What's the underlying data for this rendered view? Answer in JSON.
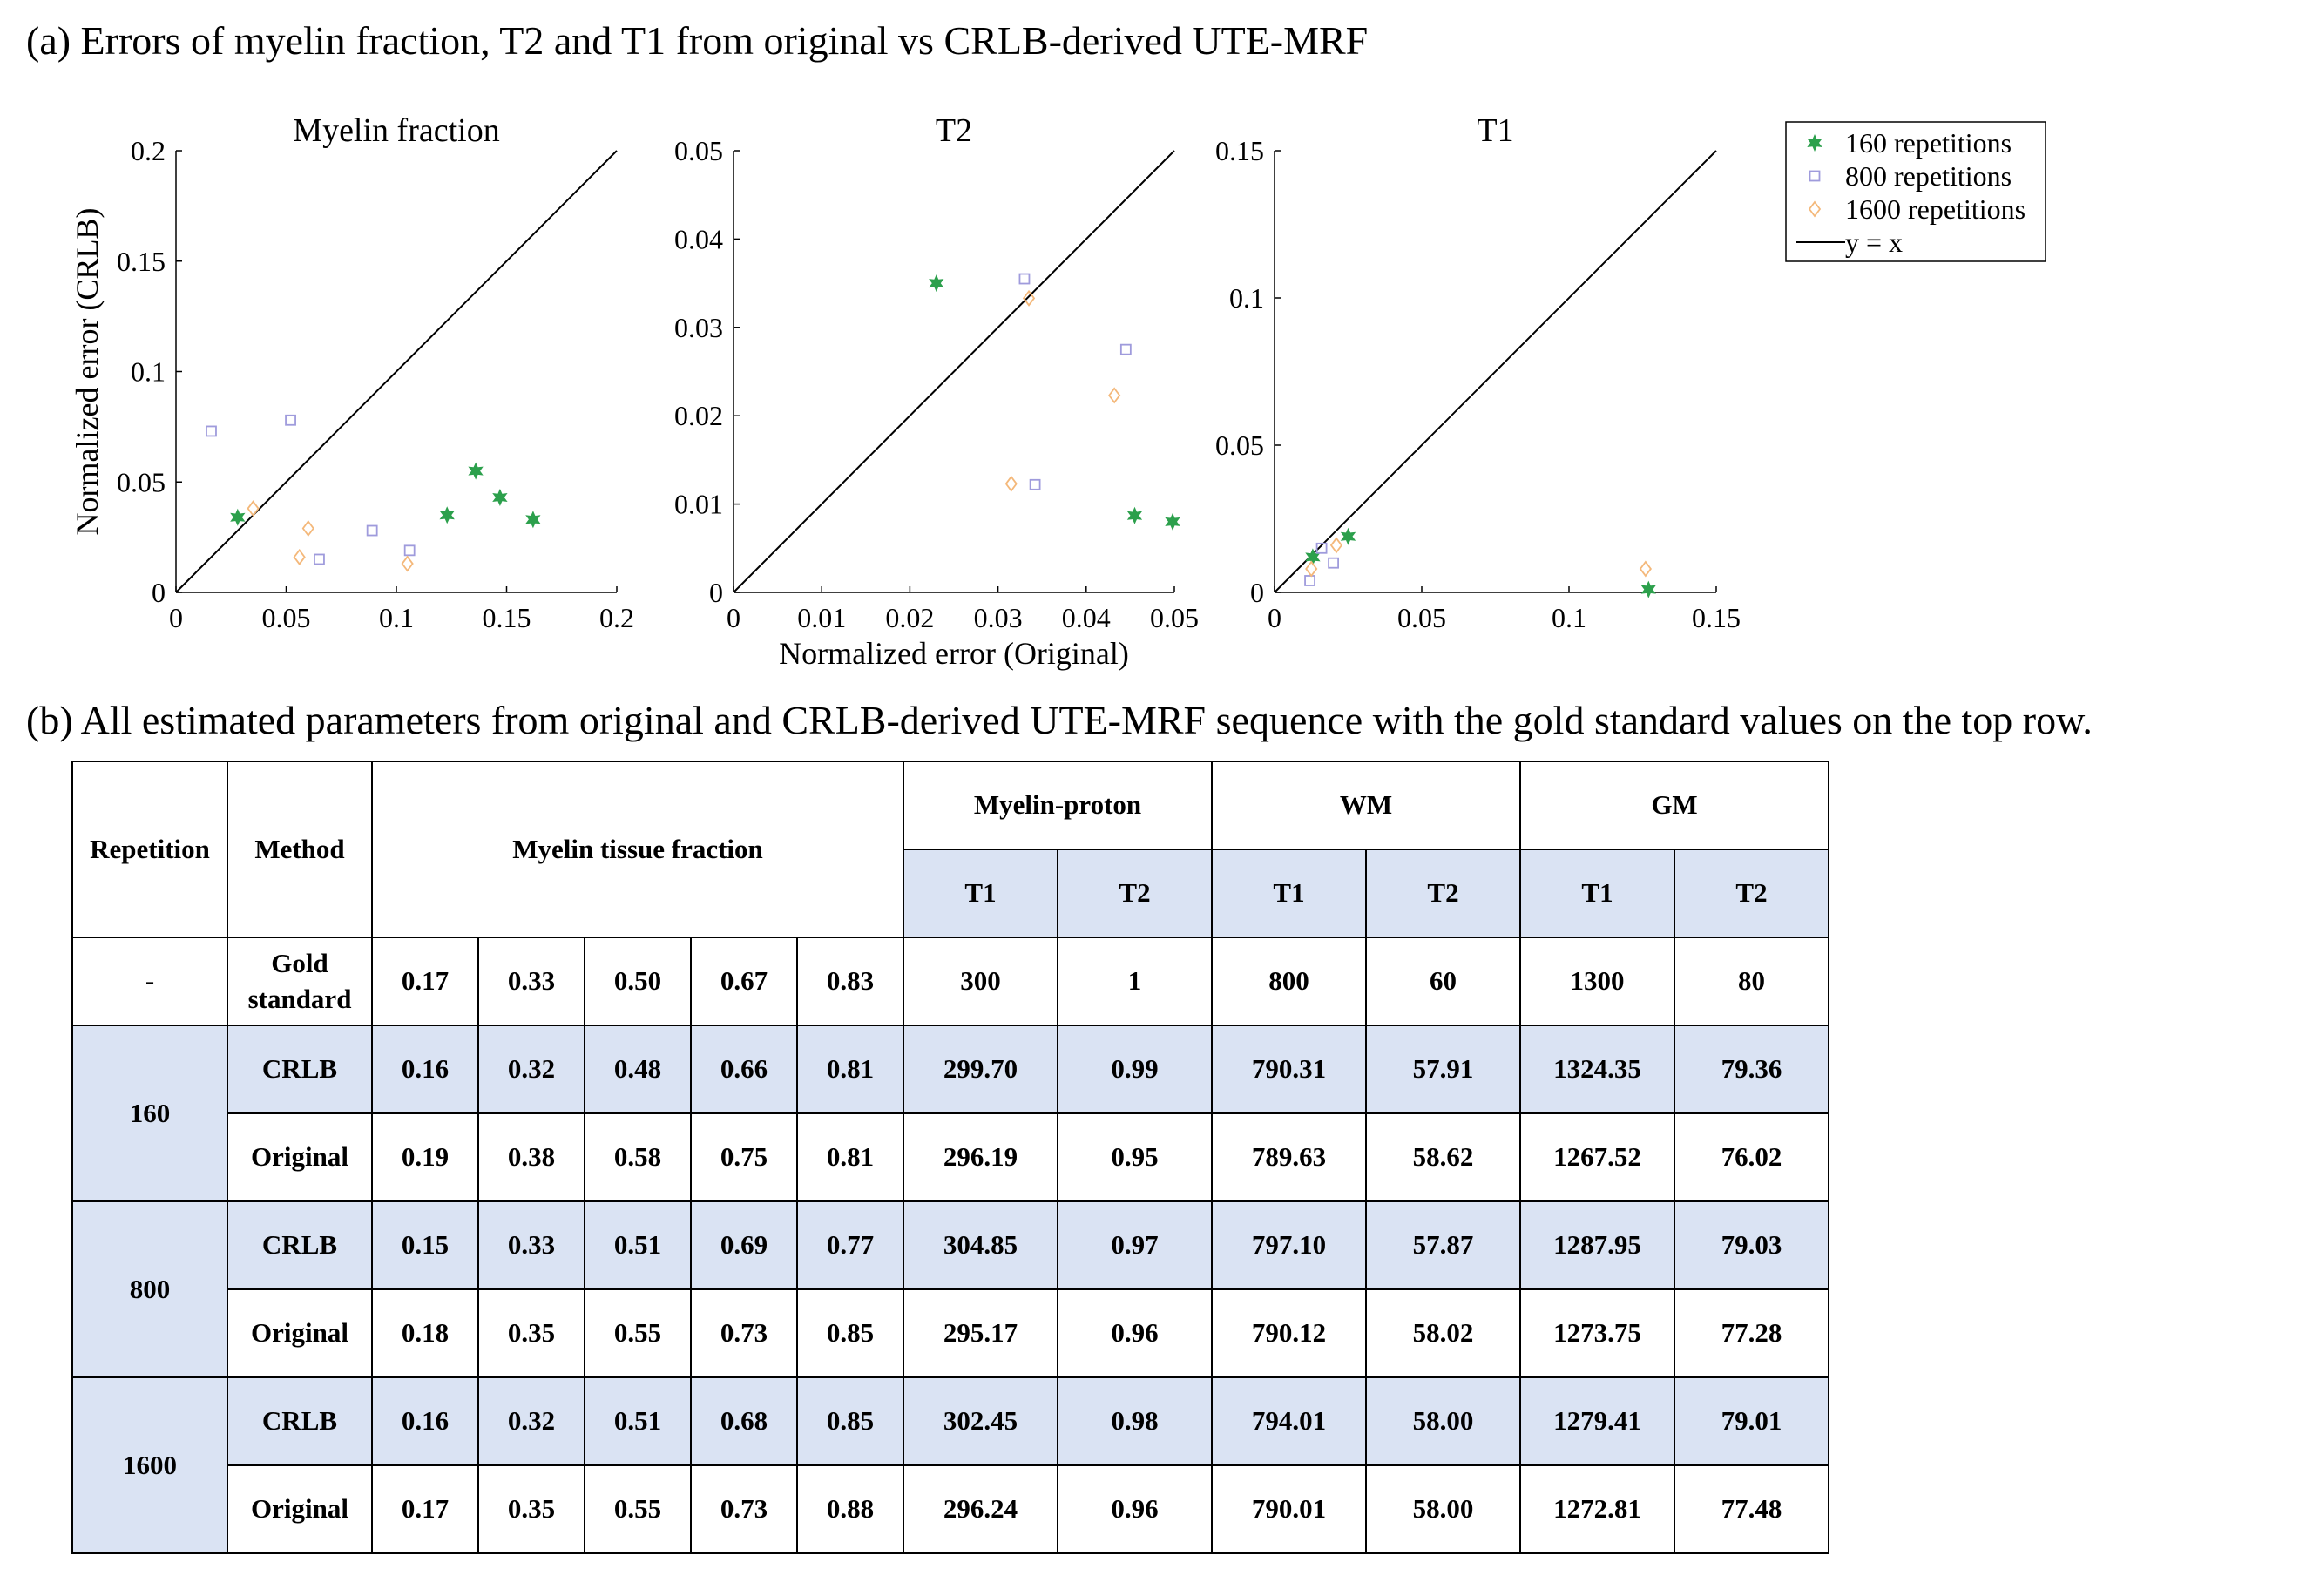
{
  "caption_a": "(a) Errors of  myelin fraction, T2 and T1 from original vs CRLB-derived UTE-MRF",
  "caption_b": "(b) All estimated parameters from original and CRLB-derived UTE-MRF sequence with the gold standard values on the top row.",
  "colors": {
    "rep160": "#2ca04c",
    "rep800": "#9f9bdc",
    "rep1600": "#f4b87a",
    "table_shade": "#dae3f3"
  },
  "legend": [
    "160 repetitions",
    "800 repetitions",
    "1600 repetitions",
    "y = x"
  ],
  "chart_data": [
    {
      "type": "scatter",
      "title": "Myelin fraction",
      "xlabel": "",
      "ylabel": "Normalized error (CRLB)",
      "xlim": [
        0,
        0.2
      ],
      "ylim": [
        0,
        0.2
      ],
      "xticks": [
        "0",
        "0.05",
        "0.1",
        "0.15",
        "0.2"
      ],
      "yticks": [
        "0",
        "0.05",
        "0.1",
        "0.15",
        "0.2"
      ],
      "reference_line": "y = x",
      "series": [
        {
          "name": "160 repetitions",
          "marker": "star",
          "points": [
            [
              0.028,
              0.034
            ],
            [
              0.123,
              0.035
            ],
            [
              0.136,
              0.055
            ],
            [
              0.147,
              0.043
            ],
            [
              0.162,
              0.033
            ]
          ]
        },
        {
          "name": "800 repetitions",
          "marker": "square",
          "points": [
            [
              0.016,
              0.073
            ],
            [
              0.052,
              0.078
            ],
            [
              0.065,
              0.015
            ],
            [
              0.089,
              0.028
            ],
            [
              0.106,
              0.019
            ]
          ]
        },
        {
          "name": "1600 repetitions",
          "marker": "diamond",
          "points": [
            [
              0.035,
              0.038
            ],
            [
              0.056,
              0.016
            ],
            [
              0.06,
              0.029
            ],
            [
              0.105,
              0.013
            ]
          ]
        }
      ]
    },
    {
      "type": "scatter",
      "title": "T2",
      "xlabel": "Normalized error (Original)",
      "ylabel": "",
      "xlim": [
        0,
        0.05
      ],
      "ylim": [
        0,
        0.05
      ],
      "xticks": [
        "0",
        "0.01",
        "0.02",
        "0.03",
        "0.04",
        "0.05"
      ],
      "yticks": [
        "0",
        "0.01",
        "0.02",
        "0.03",
        "0.04",
        "0.05"
      ],
      "reference_line": "y = x",
      "series": [
        {
          "name": "160 repetitions",
          "marker": "star",
          "points": [
            [
              0.023,
              0.035
            ],
            [
              0.0455,
              0.0087
            ],
            [
              0.0498,
              0.008
            ]
          ]
        },
        {
          "name": "800 repetitions",
          "marker": "square",
          "points": [
            [
              0.033,
              0.0355
            ],
            [
              0.0445,
              0.0275
            ],
            [
              0.0342,
              0.0122
            ]
          ]
        },
        {
          "name": "1600 repetitions",
          "marker": "diamond",
          "points": [
            [
              0.0335,
              0.0333
            ],
            [
              0.0432,
              0.0223
            ],
            [
              0.0315,
              0.0123
            ]
          ]
        }
      ]
    },
    {
      "type": "scatter",
      "title": "T1",
      "xlabel": "",
      "ylabel": "",
      "xlim": [
        0,
        0.15
      ],
      "ylim": [
        0,
        0.15
      ],
      "xticks": [
        "0",
        "0.05",
        "0.1",
        "0.15"
      ],
      "yticks": [
        "0",
        "0.05",
        "0.1",
        "0.15"
      ],
      "reference_line": "y = x",
      "series": [
        {
          "name": "160 repetitions",
          "marker": "star",
          "points": [
            [
              0.013,
              0.012
            ],
            [
              0.025,
              0.019
            ],
            [
              0.127,
              0.001
            ]
          ]
        },
        {
          "name": "800 repetitions",
          "marker": "square",
          "points": [
            [
              0.012,
              0.004
            ],
            [
              0.016,
              0.015
            ],
            [
              0.02,
              0.01
            ]
          ]
        },
        {
          "name": "1600 repetitions",
          "marker": "diamond",
          "points": [
            [
              0.0125,
              0.008
            ],
            [
              0.021,
              0.016
            ],
            [
              0.126,
              0.008
            ]
          ]
        }
      ]
    }
  ],
  "table": {
    "headers": {
      "repetition": "Repetition",
      "method": "Method",
      "fraction": "Myelin tissue fraction",
      "groups": [
        "Myelin-proton",
        "WM",
        "GM"
      ],
      "sub": [
        "T1",
        "T2",
        "T1",
        "T2",
        "T1",
        "T2"
      ]
    },
    "gold": {
      "rep": "-",
      "method": "Gold standard",
      "values": [
        "0.17",
        "0.33",
        "0.50",
        "0.67",
        "0.83",
        "300",
        "1",
        "800",
        "60",
        "1300",
        "80"
      ]
    },
    "groups": [
      {
        "rep": "160",
        "rows": [
          {
            "method": "CRLB",
            "values": [
              "0.16",
              "0.32",
              "0.48",
              "0.66",
              "0.81",
              "299.70",
              "0.99",
              "790.31",
              "57.91",
              "1324.35",
              "79.36"
            ]
          },
          {
            "method": "Original",
            "values": [
              "0.19",
              "0.38",
              "0.58",
              "0.75",
              "0.81",
              "296.19",
              "0.95",
              "789.63",
              "58.62",
              "1267.52",
              "76.02"
            ]
          }
        ]
      },
      {
        "rep": "800",
        "rows": [
          {
            "method": "CRLB",
            "values": [
              "0.15",
              "0.33",
              "0.51",
              "0.69",
              "0.77",
              "304.85",
              "0.97",
              "797.10",
              "57.87",
              "1287.95",
              "79.03"
            ]
          },
          {
            "method": "Original",
            "values": [
              "0.18",
              "0.35",
              "0.55",
              "0.73",
              "0.85",
              "295.17",
              "0.96",
              "790.12",
              "58.02",
              "1273.75",
              "77.28"
            ]
          }
        ]
      },
      {
        "rep": "1600",
        "rows": [
          {
            "method": "CRLB",
            "values": [
              "0.16",
              "0.32",
              "0.51",
              "0.68",
              "0.85",
              "302.45",
              "0.98",
              "794.01",
              "58.00",
              "1279.41",
              "79.01"
            ]
          },
          {
            "method": "Original",
            "values": [
              "0.17",
              "0.35",
              "0.55",
              "0.73",
              "0.88",
              "296.24",
              "0.96",
              "790.01",
              "58.00",
              "1272.81",
              "77.48"
            ]
          }
        ]
      }
    ]
  }
}
